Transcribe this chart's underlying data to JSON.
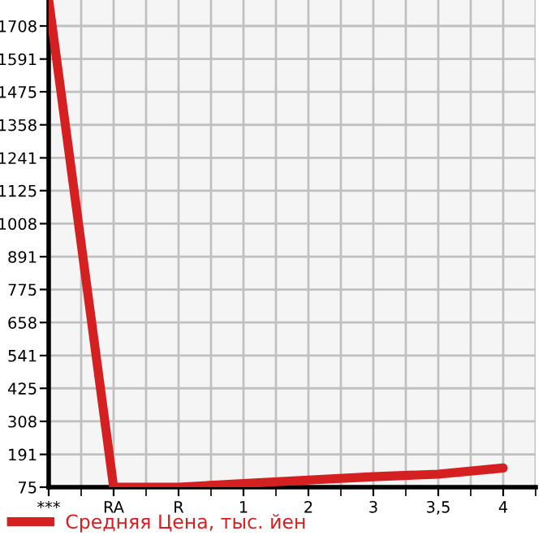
{
  "chart_data": {
    "type": "line",
    "categories": [
      "***",
      "RA",
      "R",
      "1",
      "2",
      "3",
      "3,5",
      "4"
    ],
    "series": [
      {
        "name": "Средняя Цена, тыс. йен",
        "color": "#d42020",
        "values": [
          1800,
          75,
          75,
          88,
          100,
          112,
          121,
          143
        ]
      }
    ],
    "ylim": [
      75,
      1800
    ],
    "yticks": [
      75,
      191,
      308,
      425,
      541,
      658,
      775,
      891,
      1008,
      1125,
      1241,
      1358,
      1475,
      1591,
      1708
    ],
    "grid": true,
    "legend": "bottom",
    "marker": "none",
    "line_style": "solid"
  }
}
